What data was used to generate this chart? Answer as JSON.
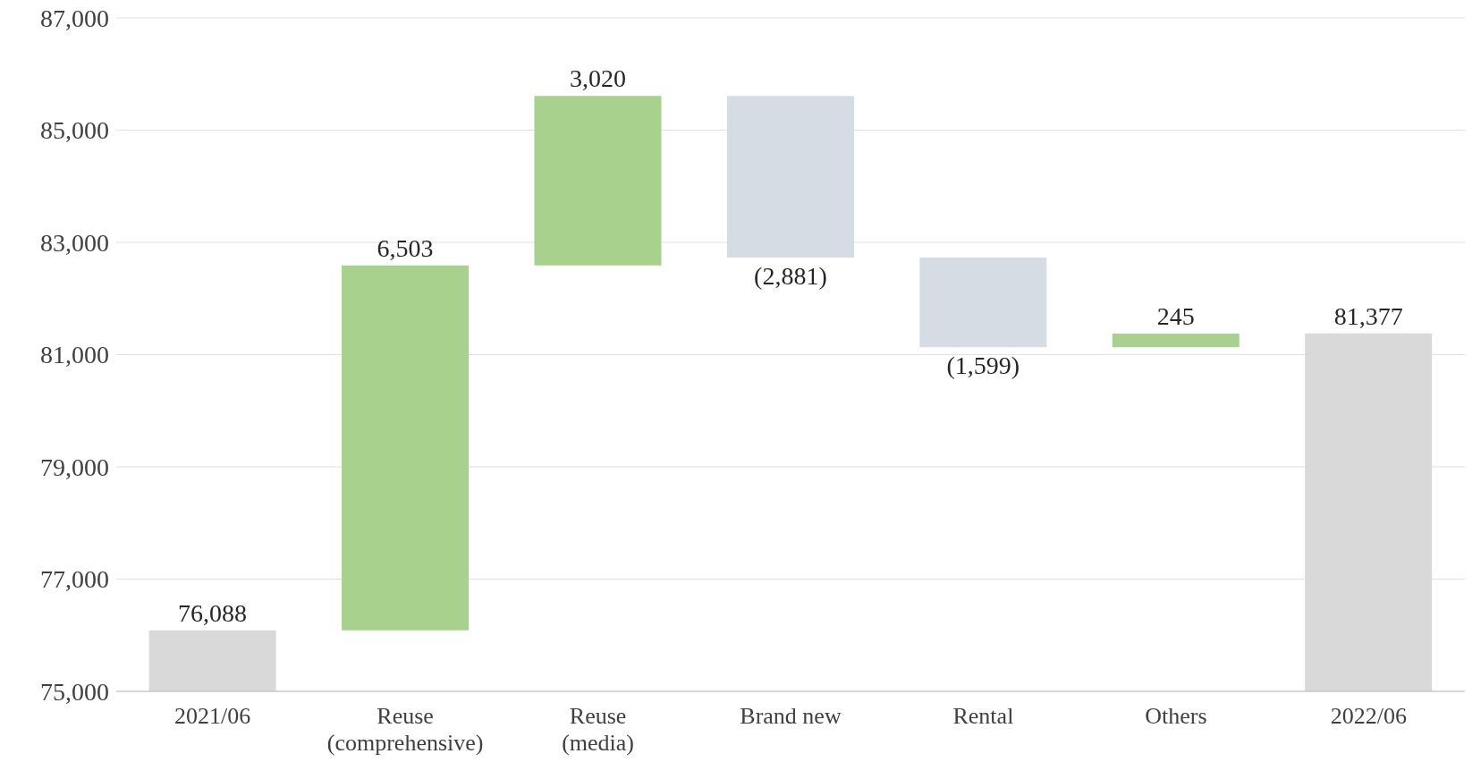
{
  "chart_data": {
    "type": "bar",
    "categories": [
      "2021/06",
      "Reuse\n(comprehensive)",
      "Reuse\n(media)",
      "Brand new",
      "Rental",
      "Others",
      "2022/06"
    ],
    "base": [
      0,
      76088,
      82591,
      85611,
      82730,
      81131,
      0
    ],
    "values": [
      76088,
      6503,
      3020,
      -2881,
      -1599,
      245,
      81377
    ],
    "value_labels": [
      "76,088",
      "6,503",
      "3,020",
      "(2,881)",
      "(1,599)",
      "245",
      "81,377"
    ],
    "colors": [
      "#d9d9d9",
      "#a9d18e",
      "#a9d18e",
      "#d6dce4",
      "#d6dce4",
      "#a9d18e",
      "#d9d9d9"
    ],
    "ylim": [
      75000,
      87000
    ],
    "yticks": [
      {
        "value": 75000,
        "label": "75,000"
      },
      {
        "value": 77000,
        "label": "77,000"
      },
      {
        "value": 79000,
        "label": "79,000"
      },
      {
        "value": 81000,
        "label": "81,000"
      },
      {
        "value": 83000,
        "label": "83,000"
      },
      {
        "value": 85000,
        "label": "85,000"
      },
      {
        "value": 87000,
        "label": "87,000"
      }
    ],
    "grid": "y"
  }
}
